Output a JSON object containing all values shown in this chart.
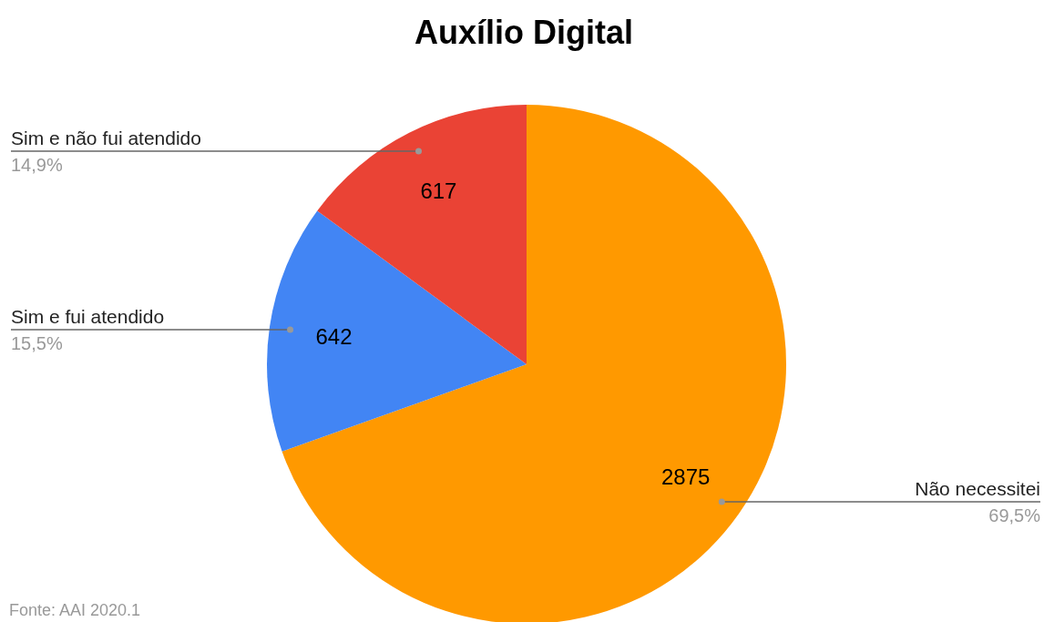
{
  "chart_data": {
    "type": "pie",
    "title": "Auxílio Digital",
    "categories": [
      "Não necessitei",
      "Sim e fui atendido",
      "Sim e não fui atendido"
    ],
    "values": [
      2875,
      642,
      617
    ],
    "colors": [
      "#ff9900",
      "#4285f4",
      "#ea4335"
    ],
    "data_labels": true,
    "legend": false,
    "annotations": [
      "69,5%",
      "15,5%",
      "14,9%",
      "Fonte: AAI 2020.1"
    ]
  }
}
